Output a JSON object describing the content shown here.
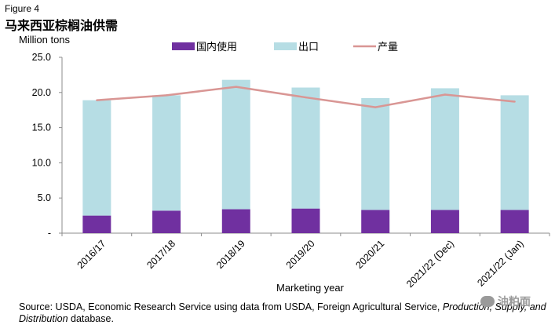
{
  "figure_label": "Figure 4",
  "title": "马来西亚棕榈油供需",
  "source": {
    "prefix": "Source: USDA, Economic Research Service using data from USDA, Foreign Agricultural Service, ",
    "italic": "Production, Supply, and Distribution",
    "suffix": " database."
  },
  "watermark": "油粕面",
  "colors": {
    "domestic": "#7030a0",
    "exports": "#b6dde4",
    "production": "#d99694",
    "axis": "#8c8c8c"
  },
  "chart_data": {
    "type": "bar",
    "stacked": true,
    "ylabel": "Million tons",
    "xlabel": "Marketing year",
    "ylim": [
      0,
      25
    ],
    "yticks": [
      0,
      5,
      10,
      15,
      20,
      25
    ],
    "ytick_labels": [
      "-",
      "5.0",
      "10.0",
      "15.0",
      "20.0",
      "25.0"
    ],
    "categories": [
      "2016/17",
      "2017/18",
      "2018/19",
      "2019/20",
      "2020/21",
      "2021/22 (Dec)",
      "2021/22 (Jan)"
    ],
    "legend_position": "top",
    "series": [
      {
        "name": "国内使用",
        "kind": "bar",
        "color_key": "domestic",
        "values": [
          2.5,
          3.2,
          3.4,
          3.5,
          3.3,
          3.3,
          3.3
        ]
      },
      {
        "name": "出口",
        "kind": "bar",
        "color_key": "exports",
        "values": [
          16.4,
          16.4,
          18.4,
          17.2,
          15.9,
          17.3,
          16.3
        ]
      },
      {
        "name": "产量",
        "kind": "line",
        "color_key": "production",
        "values": [
          18.9,
          19.6,
          20.8,
          19.3,
          17.9,
          19.7,
          18.7
        ]
      }
    ]
  }
}
